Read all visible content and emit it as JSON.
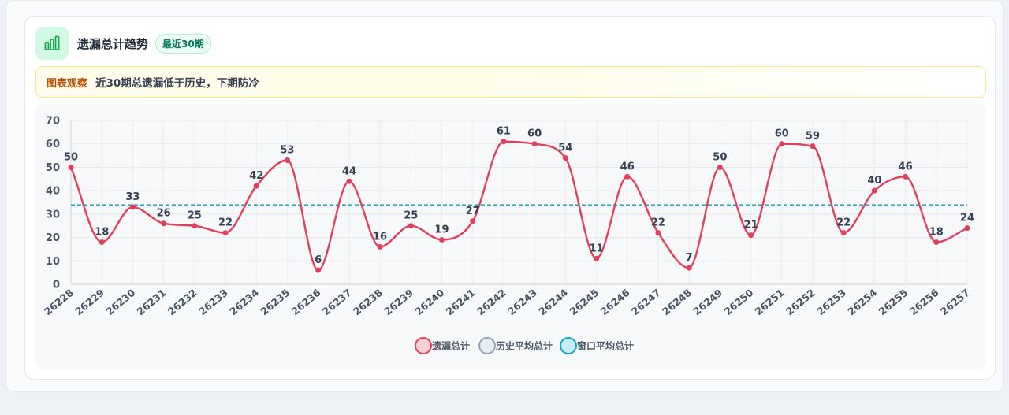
{
  "header": {
    "title": "遗漏总计趋势",
    "badge": "最近30期",
    "icon": "bar-chart-icon"
  },
  "observation": {
    "label": "图表观察",
    "text": "近30期总遗漏低于历史，下期防冷"
  },
  "colors": {
    "series_main": "#e0405e",
    "history_avg": "#94a3b8",
    "window_avg": "#0ea5c6",
    "icon": "#16a34a"
  },
  "chart_data": {
    "type": "line",
    "categories": [
      "26228",
      "26229",
      "26230",
      "26231",
      "26232",
      "26233",
      "26234",
      "26235",
      "26236",
      "26237",
      "26238",
      "26239",
      "26240",
      "26241",
      "26242",
      "26243",
      "26244",
      "26245",
      "26246",
      "26247",
      "26248",
      "26249",
      "26250",
      "26251",
      "26252",
      "26253",
      "26254",
      "26255",
      "26256",
      "26257"
    ],
    "series": [
      {
        "name": "遗漏总计",
        "values": [
          50,
          18,
          33,
          26,
          25,
          22,
          42,
          53,
          6,
          44,
          16,
          25,
          19,
          27,
          61,
          60,
          54,
          11,
          46,
          22,
          7,
          50,
          21,
          60,
          59,
          22,
          40,
          46,
          18,
          24
        ]
      },
      {
        "name": "历史平均总计",
        "values": [
          34,
          34,
          34,
          34,
          34,
          34,
          34,
          34,
          34,
          34,
          34,
          34,
          34,
          34,
          34,
          34,
          34,
          34,
          34,
          34,
          34,
          34,
          34,
          34,
          34,
          34,
          34,
          34,
          34,
          34
        ]
      },
      {
        "name": "窗口平均总计",
        "values": [
          33.7,
          33.7,
          33.7,
          33.7,
          33.7,
          33.7,
          33.7,
          33.7,
          33.7,
          33.7,
          33.7,
          33.7,
          33.7,
          33.7,
          33.7,
          33.7,
          33.7,
          33.7,
          33.7,
          33.7,
          33.7,
          33.7,
          33.7,
          33.7,
          33.7,
          33.7,
          33.7,
          33.7,
          33.7,
          33.7
        ]
      }
    ],
    "yticks": [
      0,
      10,
      20,
      30,
      40,
      50,
      60,
      70
    ],
    "ylim": [
      0,
      70
    ],
    "grid": true,
    "legend": "bottom-center",
    "data_labels": true
  }
}
